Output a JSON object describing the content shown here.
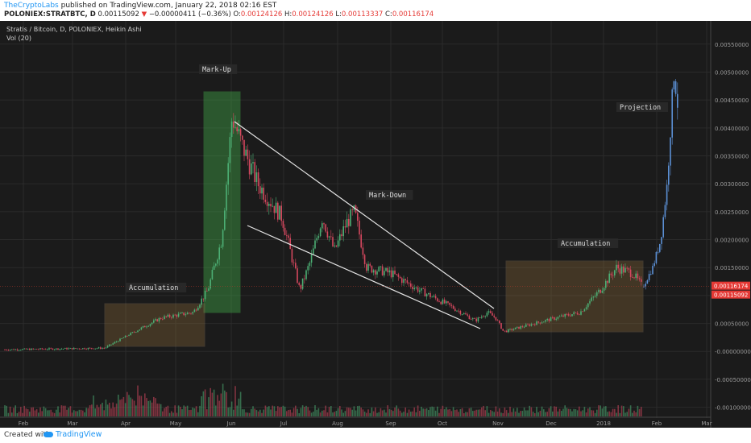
{
  "header": {
    "author": "TheCryptoLabs",
    "published_text": "published on TradingView.com, January 22, 2018 02:16 EST",
    "symbol": "POLONIEX:STRATBTC, D",
    "price_open": "0.00115092",
    "change": "−0.00000411 (−0.36%)",
    "ohlc": {
      "o_label": "O:",
      "o": "0.00124126",
      "h_label": "H:",
      "h": "0.00124126",
      "l_label": "L:",
      "l": "0.00113337",
      "c_label": "C:",
      "c": "0.00116174"
    }
  },
  "chart_title": "Stratis / Bitcoin, D, POLONIEX, Heikin Ashi",
  "indicator": "Vol (20)",
  "annotations": {
    "markup": "Mark-Up",
    "markdown": "Mark-Down",
    "accumulation_left": "Accumulation",
    "accumulation_right": "Accumulation",
    "projection": "Projection"
  },
  "price_badges": {
    "upper": "0.00116174",
    "lower": "0.00115092",
    "upper_color": "#e53935",
    "lower_color": "#e53935"
  },
  "footer": {
    "created_with": "Created with",
    "brand": "TradingView"
  },
  "colors": {
    "up": "#4caf74",
    "down": "#d4475e",
    "projection": "#5b8fd4",
    "background": "#1b1b1b",
    "grid": "#2b2b2b",
    "markup_box": "#3fa046",
    "accumulation_box": "#8a6a3a"
  },
  "chart_data": {
    "type": "candlestick",
    "title": "Stratis / Bitcoin, D, POLONIEX, Heikin Ashi",
    "x_tick_labels": [
      "Feb",
      "Mar",
      "Apr",
      "May",
      "Jun",
      "Jul",
      "Aug",
      "Sep",
      "Oct",
      "Nov",
      "Dec",
      "2018",
      "Feb",
      "Mar"
    ],
    "y_tick_labels": [
      "0.00550000",
      "0.00500000",
      "0.00450000",
      "0.00400000",
      "0.00350000",
      "0.00300000",
      "0.00250000",
      "0.00200000",
      "0.00150000",
      "0.00100000",
      "0.00050000",
      "-0.00000000",
      "-0.00050000",
      "-0.00100000"
    ],
    "ylim": [
      -0.00115,
      0.0058
    ],
    "x_months": [
      "Feb 2017",
      "Mar 2017",
      "Apr 2017",
      "May 2017",
      "Jun 2017",
      "Jul 2017",
      "Aug 2017",
      "Sep 2017",
      "Oct 2017",
      "Nov 2017",
      "Dec 2017",
      "Jan 2018",
      "Feb 2018",
      "Mar 2018"
    ],
    "price_path": [
      {
        "month": "Feb 2017",
        "price": 3e-05
      },
      {
        "month": "Mar 2017",
        "price": 5e-05
      },
      {
        "month": "Apr 2017",
        "price": 0.0003
      },
      {
        "month": "May 2017",
        "price": 0.00075
      },
      {
        "month": "late May 2017",
        "price": 0.0012
      },
      {
        "month": "Jun 2017",
        "price": 0.0042
      },
      {
        "month": "early Jul 2017",
        "price": 0.0025
      },
      {
        "month": "mid Jul 2017",
        "price": 0.0012
      },
      {
        "month": "late Jul 2017",
        "price": 0.0024
      },
      {
        "month": "Aug 2017",
        "price": 0.0025
      },
      {
        "month": "Sep 2017",
        "price": 0.0013
      },
      {
        "month": "Oct 2017",
        "price": 0.0007
      },
      {
        "month": "Nov 2017",
        "price": 0.0004
      },
      {
        "month": "Dec 2017",
        "price": 0.0007
      },
      {
        "month": "Jan 2018",
        "price": 0.0015
      },
      {
        "month": "late Jan 2018",
        "price": 0.00116
      }
    ],
    "projection_path": [
      {
        "month": "late Jan 2018",
        "price": 0.00116
      },
      {
        "month": "early Feb 2018",
        "price": 0.0025
      },
      {
        "month": "mid Feb 2018",
        "price": 0.005
      },
      {
        "month": "mid Feb 2018",
        "price": 0.0042
      }
    ],
    "last_price": 0.00116174,
    "open_price": 0.00115092,
    "grid": true,
    "volume_indicator": "Vol (20)"
  }
}
